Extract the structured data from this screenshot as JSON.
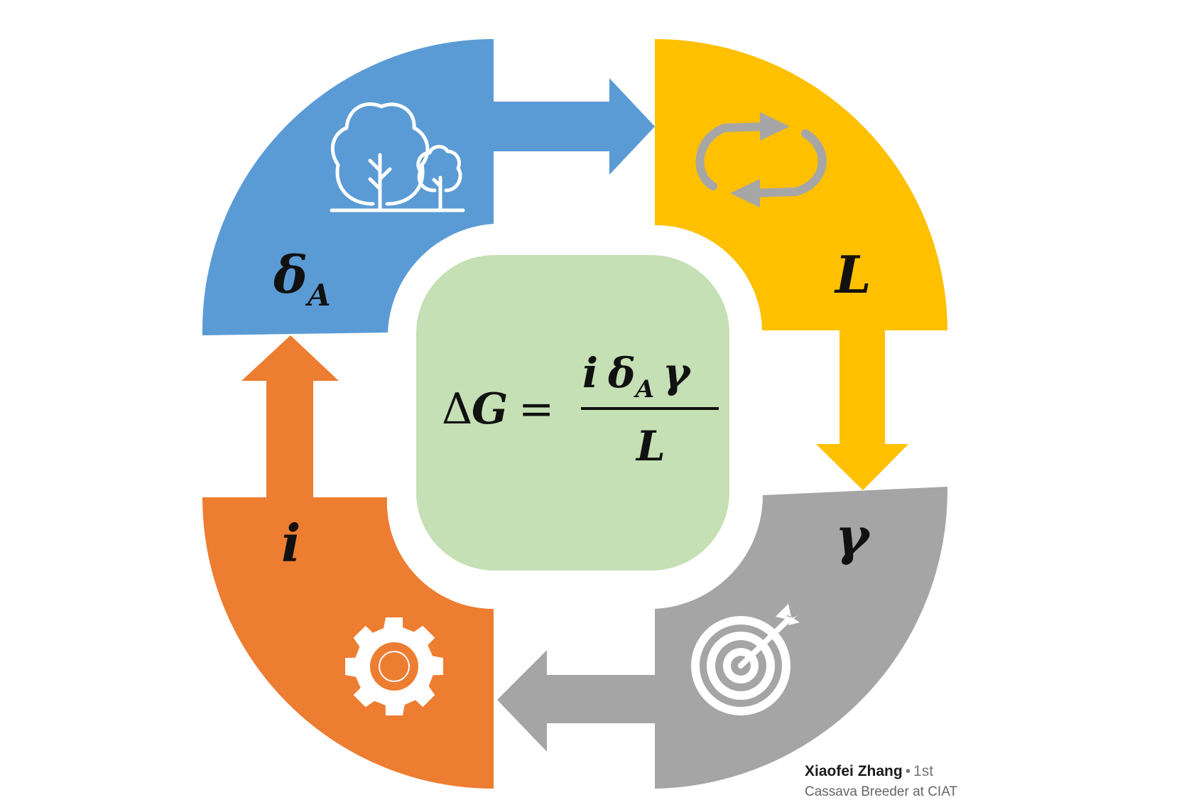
{
  "diagram": {
    "colors": {
      "blue": "#5b9bd5",
      "yellow": "#ffc000",
      "gray": "#a5a5a5",
      "orange": "#ed7d31",
      "center": "#c5e0b4",
      "icon_gray": "#a6a6a6",
      "white": "#ffffff"
    },
    "segments": [
      {
        "key": "blue",
        "symbol": "δ",
        "subscript": "A",
        "icon": "trees-icon"
      },
      {
        "key": "yellow",
        "symbol": "L",
        "icon": "cycle-arrows-icon"
      },
      {
        "key": "gray",
        "symbol": "γ",
        "icon": "target-icon"
      },
      {
        "key": "orange",
        "symbol": "i",
        "icon": "gear-icon"
      }
    ],
    "equation": {
      "lhs_delta": "Δ",
      "lhs_var": "G",
      "equals": "=",
      "num_i": "i",
      "num_delta": "δ",
      "num_sub": "A",
      "num_gamma": "γ",
      "denominator": "L"
    }
  },
  "author": {
    "name": "Xiaofei Zhang",
    "separator": "•",
    "degree": "1st",
    "headline": "Cassava Breeder at CIAT"
  }
}
